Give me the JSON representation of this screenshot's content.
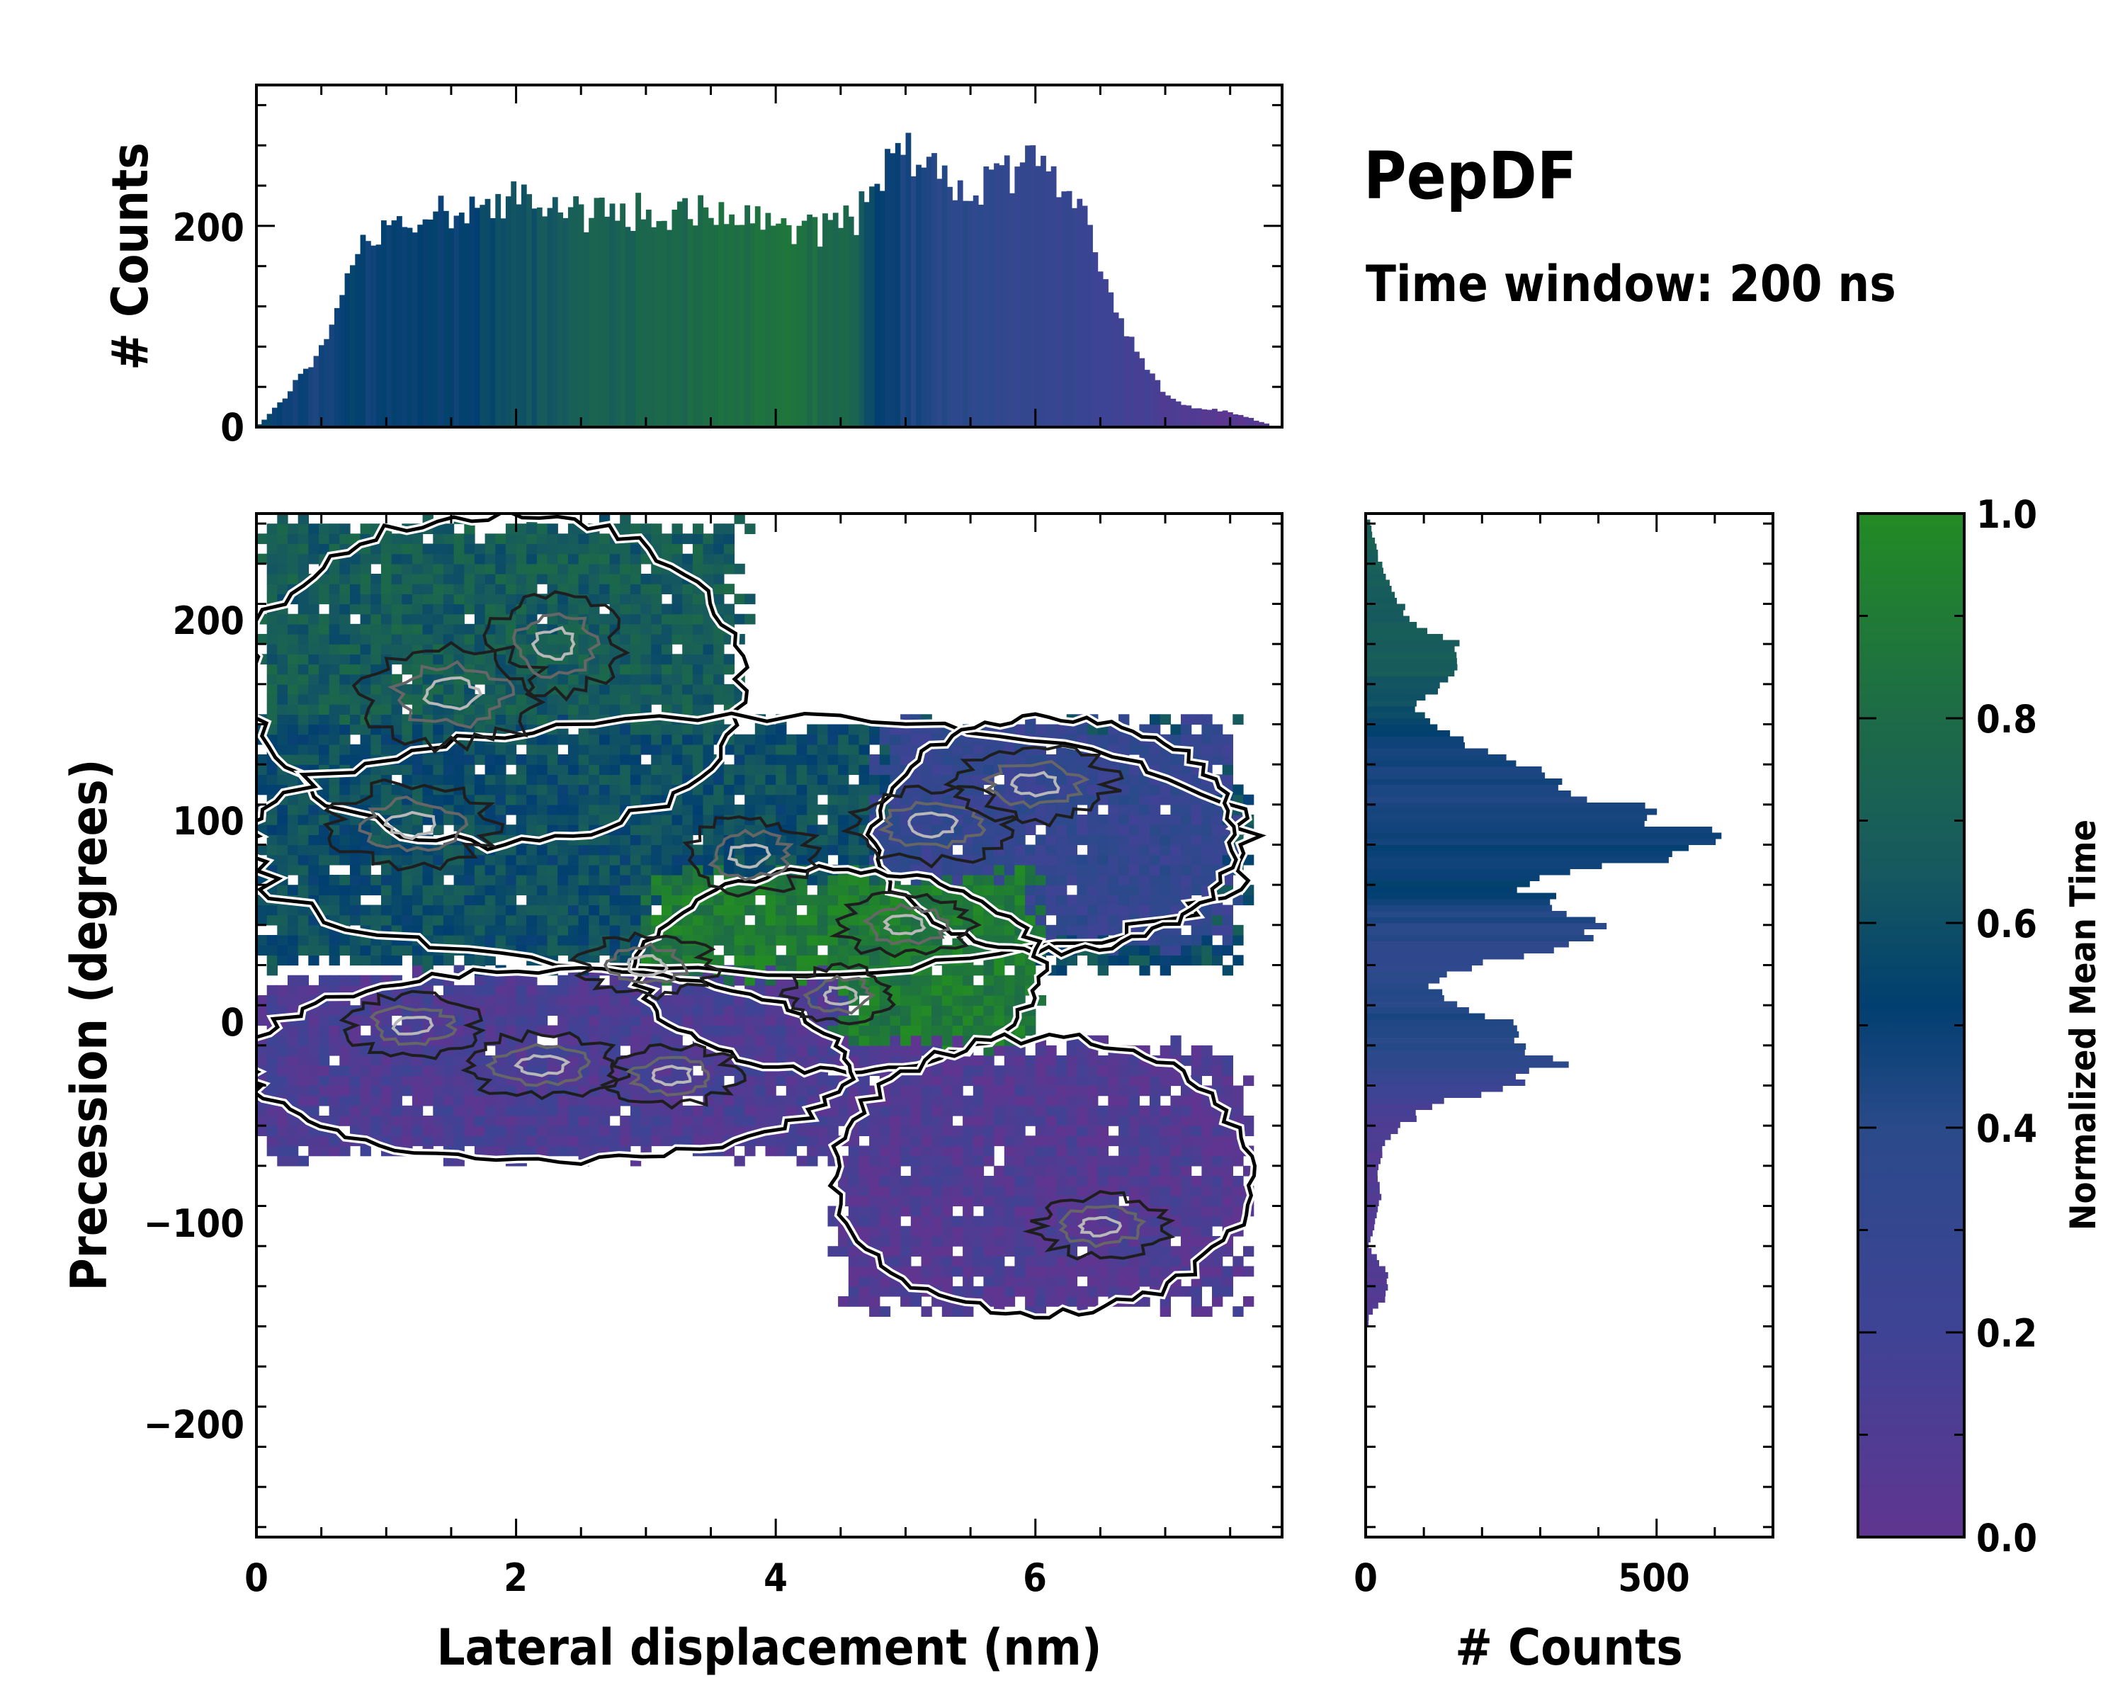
{
  "chart_data": {
    "title": "PepDF",
    "subtitle": "Time window: 200 ns",
    "main": {
      "type": "heatmap",
      "xlabel": "Lateral displacement (nm)",
      "ylabel": "Precession (degrees)",
      "xlim": [
        0,
        7.9
      ],
      "ylim": [
        -255,
        255
      ],
      "xticks": [
        0,
        2,
        4,
        6
      ],
      "xtick_labels": [
        "0",
        "2",
        "4",
        "6"
      ],
      "yticks": [
        200,
        100,
        0,
        -100,
        -200
      ],
      "ytick_labels": [
        "200",
        "100",
        "0",
        "−100",
        "−200"
      ],
      "colorbar_label": "Normalized Mean Time",
      "regions": [
        {
          "name": "upper-left lobe",
          "x": [
            0.0,
            3.7
          ],
          "y": [
            95,
            250
          ],
          "mean_time": 0.68
        },
        {
          "name": "central band",
          "x": [
            0.0,
            7.6
          ],
          "y": [
            30,
            150
          ],
          "mean_time": 0.6
        },
        {
          "name": "right upper band",
          "x": [
            4.8,
            7.5
          ],
          "y": [
            40,
            150
          ],
          "mean_time": 0.3
        },
        {
          "name": "center green core",
          "x": [
            3.0,
            6.0
          ],
          "y": [
            -20,
            75
          ],
          "mean_time": 0.9
        },
        {
          "name": "lower-left lobe",
          "x": [
            0.0,
            4.5
          ],
          "y": [
            -65,
            25
          ],
          "mean_time": 0.12
        },
        {
          "name": "lower-right lobe",
          "x": [
            4.5,
            7.6
          ],
          "y": [
            -140,
            -10
          ],
          "mean_time": 0.08
        }
      ]
    },
    "top_histogram": {
      "type": "bar",
      "ylabel": "# Counts",
      "yticks": [
        0,
        200
      ],
      "ytick_labels": [
        "0",
        "200"
      ],
      "ylim": [
        0,
        340
      ],
      "x_anchor": [
        0.0,
        0.15,
        0.5,
        0.7,
        0.8,
        1.5,
        2.0,
        2.5,
        3.0,
        3.5,
        4.0,
        4.3,
        4.6,
        4.8,
        5.0,
        5.3,
        5.6,
        6.0,
        6.4,
        6.7,
        7.0,
        7.2,
        7.5,
        7.8
      ],
      "counts_anchor": [
        0,
        20,
        75,
        145,
        185,
        215,
        225,
        210,
        215,
        215,
        200,
        195,
        205,
        245,
        275,
        250,
        240,
        265,
        200,
        95,
        30,
        20,
        15,
        3
      ],
      "time_anchor": [
        0.6,
        0.5,
        0.45,
        0.55,
        0.5,
        0.5,
        0.6,
        0.7,
        0.75,
        0.8,
        0.85,
        0.8,
        0.75,
        0.5,
        0.45,
        0.4,
        0.35,
        0.3,
        0.25,
        0.2,
        0.12,
        0.08,
        0.05,
        0.05
      ]
    },
    "right_histogram": {
      "type": "bar",
      "xlabel": "# Counts",
      "xticks": [
        0,
        500
      ],
      "xtick_labels": [
        "0",
        "500"
      ],
      "xlim": [
        0,
        700
      ],
      "y_anchor": [
        250,
        235,
        215,
        200,
        190,
        175,
        160,
        145,
        125,
        105,
        90,
        80,
        70,
        60,
        45,
        30,
        20,
        10,
        0,
        -10,
        -20,
        -30,
        -40,
        -55,
        -70,
        -85,
        -100,
        -110,
        -125,
        -135,
        -145
      ],
      "counts_anchor": [
        8,
        20,
        45,
        85,
        150,
        160,
        80,
        140,
        300,
        480,
        640,
        420,
        270,
        330,
        410,
        180,
        100,
        160,
        250,
        290,
        330,
        250,
        110,
        40,
        20,
        25,
        15,
        5,
        40,
        35,
        5
      ],
      "time_anchor": [
        0.7,
        0.7,
        0.68,
        0.68,
        0.7,
        0.66,
        0.62,
        0.5,
        0.45,
        0.45,
        0.5,
        0.48,
        0.55,
        0.45,
        0.4,
        0.35,
        0.4,
        0.42,
        0.45,
        0.4,
        0.35,
        0.25,
        0.15,
        0.1,
        0.08,
        0.08,
        0.08,
        0.08,
        0.08,
        0.08,
        0.08
      ]
    },
    "colorbar": {
      "label": "Normalized Mean Time",
      "ticks": [
        1.0,
        0.8,
        0.6,
        0.4,
        0.2,
        0.0
      ],
      "tick_labels": [
        "1.0",
        "0.8",
        "0.6",
        "0.4",
        "0.2",
        "0.0"
      ],
      "colors": [
        "#5f3590",
        "#3f4395",
        "#2a4a8a",
        "#013f70",
        "#16595f",
        "#1d6b47",
        "#238b24"
      ]
    }
  }
}
